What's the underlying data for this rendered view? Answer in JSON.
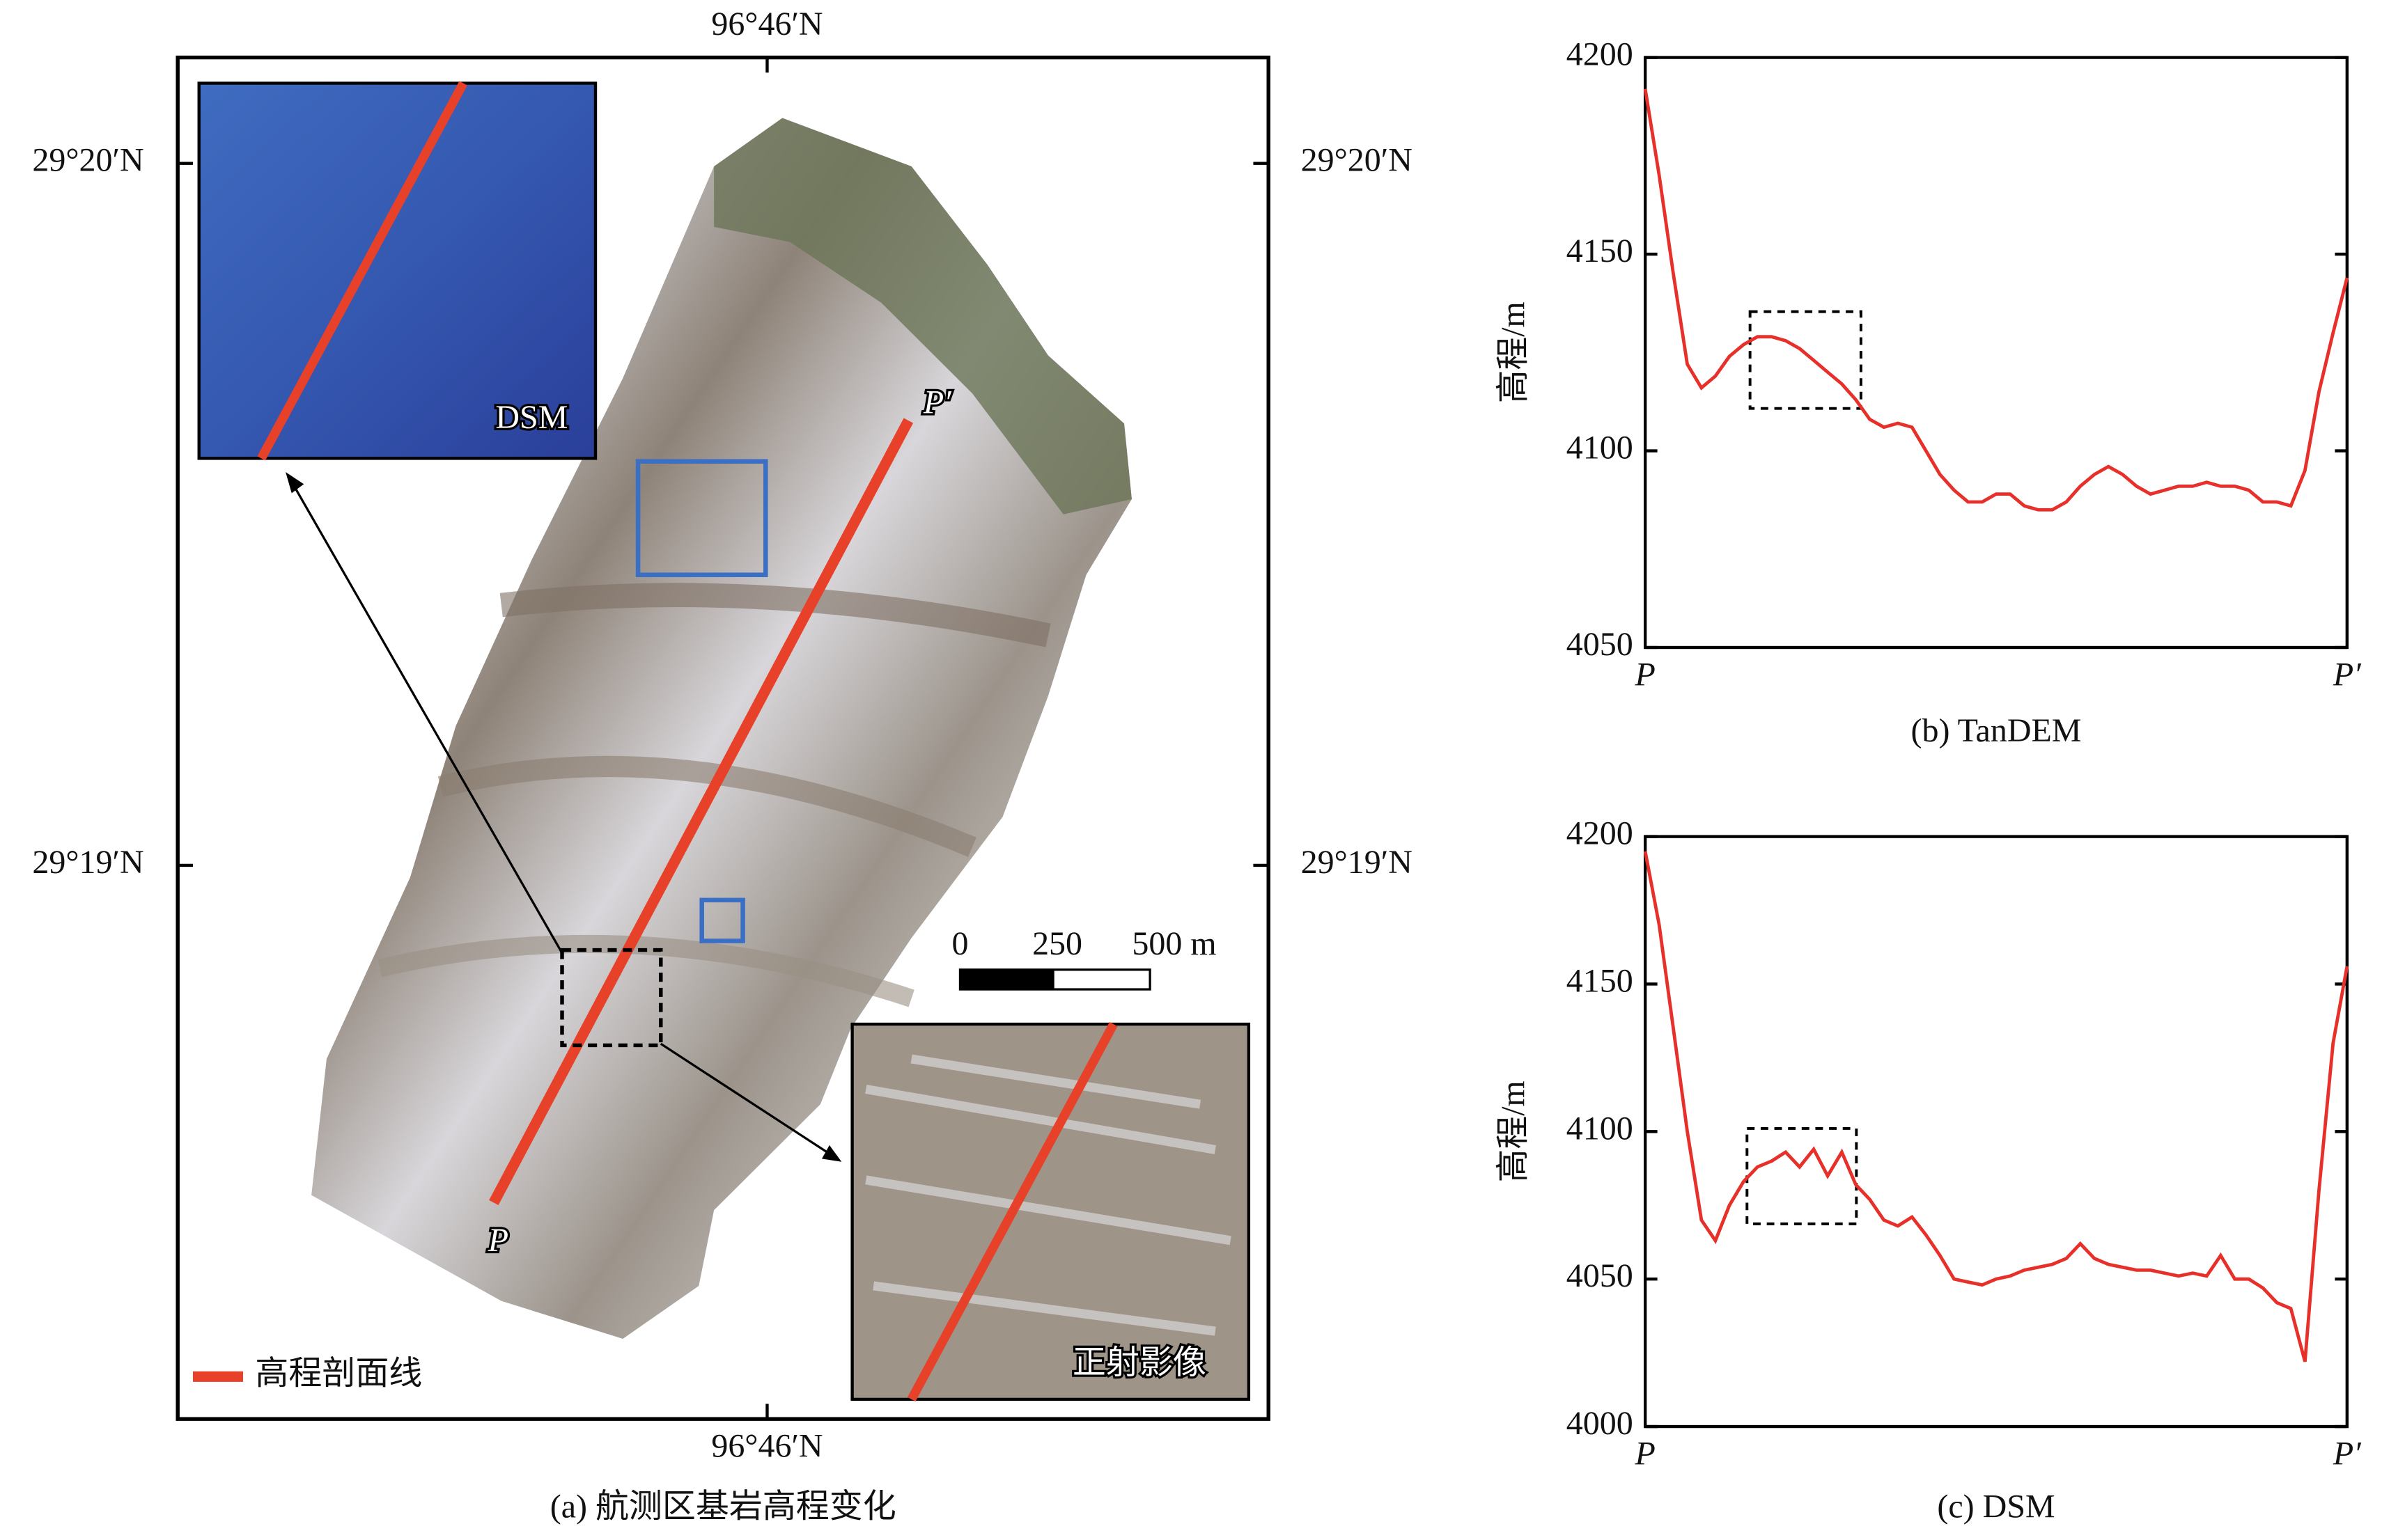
{
  "map": {
    "lon_top": "96°46′N",
    "lon_bottom": "96°46′N",
    "lat_left_upper": "29°20′N",
    "lat_right_upper": "29°20′N",
    "lat_left_lower": "29°19′N",
    "lat_right_lower": "29°19′N",
    "inset_dsm": "DSM",
    "inset_ortho": "正射影像",
    "point_start": "P",
    "point_end": "P′",
    "scale_labels": [
      "0",
      "250",
      "500 m"
    ],
    "legend": "高程剖面线",
    "caption": "(a) 航测区基岩高程变化"
  },
  "chart_data": [
    {
      "type": "line",
      "caption": "(b) TanDEM",
      "ylabel": "高程/m",
      "color": "#e8302a",
      "xlim": [
        0,
        100
      ],
      "xticks": [
        {
          "value": 0,
          "label": "P"
        },
        {
          "value": 100,
          "label": "P′"
        }
      ],
      "ylim": [
        4050,
        4200
      ],
      "yticks": [
        4050,
        4100,
        4150,
        4200
      ],
      "x": [
        0,
        2,
        4,
        6,
        8,
        10,
        12,
        14,
        16,
        18,
        20,
        22,
        24,
        26,
        28,
        30,
        32,
        34,
        36,
        38,
        40,
        42,
        44,
        46,
        48,
        50,
        52,
        54,
        56,
        58,
        60,
        62,
        64,
        66,
        68,
        70,
        72,
        74,
        76,
        78,
        80,
        82,
        84,
        86,
        88,
        90,
        92,
        94,
        96,
        98,
        100
      ],
      "values": [
        4192,
        4170,
        4145,
        4122,
        4116,
        4119,
        4124,
        4127,
        4129,
        4129,
        4128,
        4126,
        4123,
        4120,
        4117,
        4113,
        4108,
        4106,
        4107,
        4106,
        4100,
        4094,
        4090,
        4087,
        4087,
        4089,
        4089,
        4086,
        4085,
        4085,
        4087,
        4091,
        4094,
        4096,
        4094,
        4091,
        4089,
        4090,
        4091,
        4091,
        4092,
        4091,
        4091,
        4090,
        4087,
        4087,
        4086,
        4095,
        4115,
        4130,
        4144
      ]
    },
    {
      "type": "line",
      "caption": "(c) DSM",
      "ylabel": "高程/m",
      "color": "#e8302a",
      "xlim": [
        0,
        100
      ],
      "xticks": [
        {
          "value": 0,
          "label": "P"
        },
        {
          "value": 100,
          "label": "P′"
        }
      ],
      "ylim": [
        4000,
        4200
      ],
      "yticks": [
        4000,
        4050,
        4100,
        4150,
        4200
      ],
      "x": [
        0,
        2,
        4,
        6,
        8,
        10,
        12,
        14,
        16,
        18,
        20,
        22,
        24,
        26,
        28,
        30,
        32,
        34,
        36,
        38,
        40,
        42,
        44,
        46,
        48,
        50,
        52,
        54,
        56,
        58,
        60,
        62,
        64,
        66,
        68,
        70,
        72,
        74,
        76,
        78,
        80,
        82,
        84,
        86,
        88,
        90,
        92,
        94,
        96,
        98,
        100
      ],
      "values": [
        4195,
        4170,
        4135,
        4100,
        4070,
        4063,
        4075,
        4083,
        4088,
        4090,
        4093,
        4088,
        4094,
        4085,
        4093,
        4082,
        4077,
        4070,
        4068,
        4071,
        4065,
        4058,
        4050,
        4049,
        4048,
        4050,
        4051,
        4053,
        4054,
        4055,
        4057,
        4062,
        4057,
        4055,
        4054,
        4053,
        4053,
        4052,
        4051,
        4052,
        4051,
        4058,
        4050,
        4050,
        4047,
        4042,
        4040,
        4022,
        4080,
        4130,
        4156
      ]
    }
  ]
}
